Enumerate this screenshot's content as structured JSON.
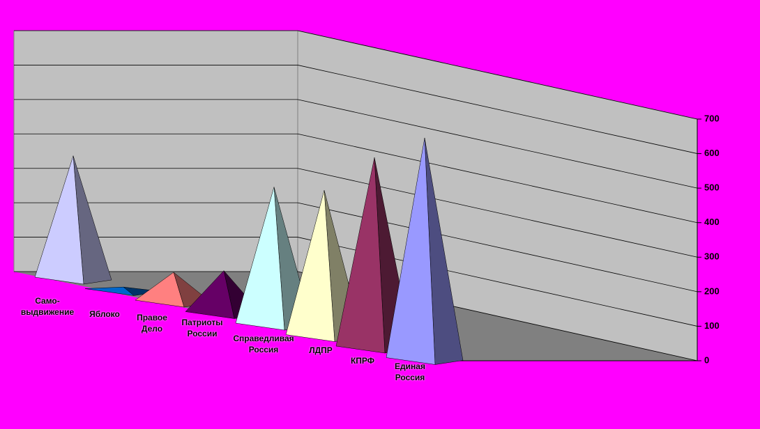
{
  "chart_data": {
    "type": "pyramid3d",
    "categories": [
      "Само-\nвыдвижение",
      "Яблоко",
      "Правое\nДело",
      "Патриоты\nРоссии",
      "Справедливая\nРоссия",
      "ЛДПР",
      "КПРФ",
      "Единая\nРоссия"
    ],
    "values": [
      370,
      5,
      85,
      125,
      415,
      440,
      575,
      670
    ],
    "colors": [
      "#ccccff",
      "#0066cc",
      "#ff8080",
      "#660066",
      "#ccffff",
      "#ffffcc",
      "#993366",
      "#9999ff"
    ],
    "ylim": [
      0,
      700
    ],
    "yticks": [
      0,
      100,
      200,
      300,
      400,
      500,
      600,
      700
    ],
    "grid": true
  }
}
